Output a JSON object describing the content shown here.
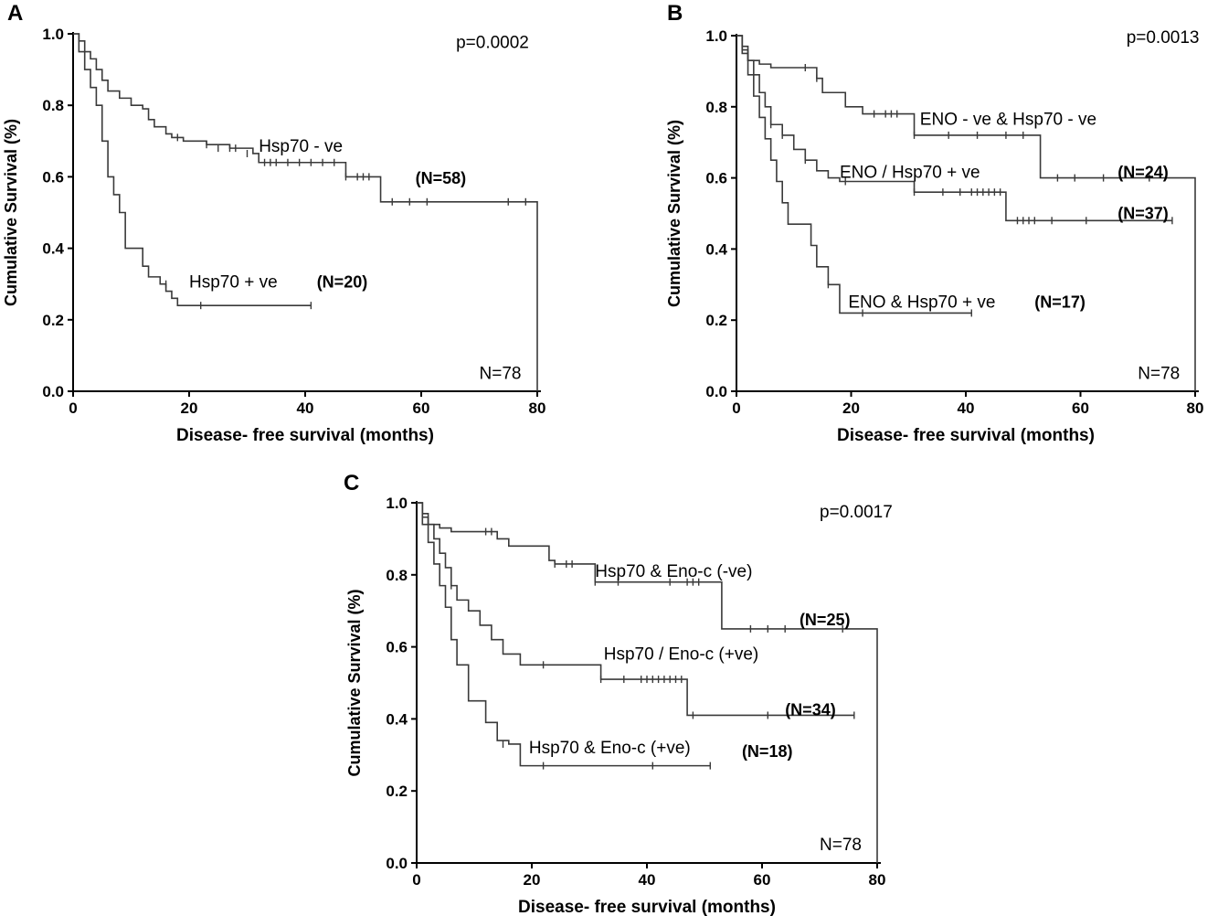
{
  "chart_data": [
    {
      "panel": "A",
      "type": "line",
      "xlabel": "Disease- free survival (months)",
      "ylabel": "Cumulative Survival (%)",
      "xlim": [
        0,
        80
      ],
      "ylim": [
        0,
        1
      ],
      "xticks": [
        "0",
        "20",
        "40",
        "60",
        "80"
      ],
      "yticks": [
        "0.0",
        "0.2",
        "0.4",
        "0.6",
        "0.8",
        "1.0"
      ],
      "annotations": [
        {
          "text": "p=0.0002",
          "x": 66,
          "y": 0.96,
          "style": "annot"
        },
        {
          "text": "Hsp70 - ve",
          "x": 32,
          "y": 0.67,
          "style": "annot"
        },
        {
          "text": "(N=58)",
          "x": 59,
          "y": 0.58,
          "style": "annot-bold"
        },
        {
          "text": "Hsp70 + ve",
          "x": 20,
          "y": 0.29,
          "style": "annot"
        },
        {
          "text": "(N=20)",
          "x": 42,
          "y": 0.29,
          "style": "annot-bold"
        },
        {
          "text": "N=78",
          "x": 70,
          "y": 0.035,
          "style": "annot"
        }
      ],
      "series": [
        {
          "x": [
            0,
            1,
            2,
            3,
            4,
            5,
            6,
            8,
            10,
            12,
            13,
            14,
            16,
            17,
            18,
            19,
            23,
            27,
            31,
            32,
            47,
            53,
            80,
            80
          ],
          "y": [
            1.0,
            0.98,
            0.95,
            0.93,
            0.9,
            0.87,
            0.84,
            0.82,
            0.8,
            0.79,
            0.76,
            0.74,
            0.72,
            0.71,
            0.71,
            0.7,
            0.69,
            0.68,
            0.665,
            0.64,
            0.6,
            0.53,
            0.53,
            0.0
          ],
          "censored_x": [
            18,
            23,
            25,
            27,
            28,
            30,
            33,
            34,
            35,
            37,
            39,
            41,
            43,
            45,
            47,
            49,
            50,
            51,
            55,
            58,
            61,
            75,
            78
          ],
          "censored_y": [
            0.71,
            0.69,
            0.68,
            0.68,
            0.68,
            0.665,
            0.64,
            0.64,
            0.64,
            0.64,
            0.64,
            0.64,
            0.64,
            0.64,
            0.6,
            0.6,
            0.6,
            0.6,
            0.53,
            0.53,
            0.53,
            0.53,
            0.53
          ]
        },
        {
          "x": [
            0,
            1,
            2,
            3,
            4,
            5,
            6,
            7,
            8,
            9,
            12,
            13,
            15,
            16,
            17,
            18,
            41
          ],
          "y": [
            1.0,
            0.95,
            0.9,
            0.85,
            0.8,
            0.7,
            0.6,
            0.55,
            0.5,
            0.4,
            0.35,
            0.32,
            0.3,
            0.28,
            0.26,
            0.24,
            0.24
          ],
          "censored_x": [
            16,
            22,
            41
          ],
          "censored_y": [
            0.3,
            0.24,
            0.24
          ]
        }
      ]
    },
    {
      "panel": "B",
      "type": "line",
      "xlabel": "Disease- free survival (months)",
      "ylabel": "Cumulative Survival (%)",
      "xlim": [
        0,
        80
      ],
      "ylim": [
        0,
        1
      ],
      "xticks": [
        "0",
        "20",
        "40",
        "60",
        "80"
      ],
      "yticks": [
        "0.0",
        "0.2",
        "0.4",
        "0.6",
        "0.8",
        "1.0"
      ],
      "annotations": [
        {
          "text": "p=0.0013",
          "x": 68,
          "y": 0.98,
          "style": "annot"
        },
        {
          "text": "ENO - ve & Hsp70  - ve",
          "x": 32,
          "y": 0.75,
          "style": "annot"
        },
        {
          "text": "(N=24)",
          "x": 66.5,
          "y": 0.6,
          "style": "annot-bold"
        },
        {
          "text": "ENO / Hsp70 + ve",
          "x": 18,
          "y": 0.6,
          "style": "annot"
        },
        {
          "text": "(N=37)",
          "x": 66.5,
          "y": 0.485,
          "style": "annot-bold"
        },
        {
          "text": "ENO & Hsp70 + ve",
          "x": 19.5,
          "y": 0.235,
          "style": "annot"
        },
        {
          "text": "(N=17)",
          "x": 52,
          "y": 0.235,
          "style": "annot-bold"
        },
        {
          "text": "N=78",
          "x": 70,
          "y": 0.035,
          "style": "annot"
        }
      ],
      "series": [
        {
          "x": [
            0,
            1,
            2,
            4,
            6,
            12,
            14,
            15,
            19,
            22,
            31,
            53,
            80,
            80
          ],
          "y": [
            1.0,
            0.96,
            0.93,
            0.92,
            0.91,
            0.91,
            0.88,
            0.84,
            0.8,
            0.78,
            0.72,
            0.6,
            0.6,
            0.0
          ],
          "censored_x": [
            12,
            14,
            24,
            26,
            27,
            28,
            31,
            37,
            42,
            47,
            50,
            56,
            59,
            64,
            72
          ],
          "censored_y": [
            0.91,
            0.88,
            0.78,
            0.78,
            0.78,
            0.78,
            0.72,
            0.72,
            0.72,
            0.72,
            0.72,
            0.6,
            0.6,
            0.6,
            0.6
          ]
        },
        {
          "x": [
            0,
            1,
            2,
            3,
            4,
            5,
            6,
            8,
            10,
            12,
            14,
            16,
            18,
            31,
            34,
            47,
            76
          ],
          "y": [
            1.0,
            0.97,
            0.93,
            0.89,
            0.84,
            0.8,
            0.75,
            0.72,
            0.68,
            0.65,
            0.62,
            0.6,
            0.59,
            0.56,
            0.56,
            0.48,
            0.48
          ],
          "censored_x": [
            6,
            8,
            12,
            19,
            31,
            36,
            39,
            41,
            42,
            43,
            44,
            45,
            46,
            49,
            50,
            51,
            52,
            55,
            61,
            76
          ],
          "censored_y": [
            0.75,
            0.72,
            0.65,
            0.59,
            0.56,
            0.56,
            0.56,
            0.56,
            0.56,
            0.56,
            0.56,
            0.56,
            0.56,
            0.48,
            0.48,
            0.48,
            0.48,
            0.48,
            0.48,
            0.48
          ]
        },
        {
          "x": [
            0,
            1,
            2,
            3,
            4,
            5,
            6,
            7,
            8,
            9,
            13,
            14,
            16,
            18,
            41
          ],
          "y": [
            1.0,
            0.95,
            0.89,
            0.83,
            0.77,
            0.71,
            0.65,
            0.59,
            0.53,
            0.47,
            0.41,
            0.35,
            0.3,
            0.22,
            0.22
          ],
          "censored_x": [
            16,
            22,
            41
          ],
          "censored_y": [
            0.3,
            0.22,
            0.22
          ]
        }
      ]
    },
    {
      "panel": "C",
      "type": "line",
      "xlabel": "Disease- free survival (months)",
      "ylabel": "Cumulative Survival (%)",
      "xlim": [
        0,
        80
      ],
      "ylim": [
        0,
        1
      ],
      "xticks": [
        "0",
        "20",
        "40",
        "60",
        "80"
      ],
      "yticks": [
        "0.0",
        "0.2",
        "0.4",
        "0.6",
        "0.8",
        "1.0"
      ],
      "annotations": [
        {
          "text": "p=0.0017",
          "x": 70,
          "y": 0.96,
          "style": "annot"
        },
        {
          "text": "Hsp70 & Eno-c (-ve)",
          "x": 31,
          "y": 0.795,
          "style": "annot"
        },
        {
          "text": "(N=25)",
          "x": 66.5,
          "y": 0.66,
          "style": "annot-bold"
        },
        {
          "text": "Hsp70 / Eno-c (+ve)",
          "x": 32.5,
          "y": 0.565,
          "style": "annot"
        },
        {
          "text": "(N=34)",
          "x": 64,
          "y": 0.41,
          "style": "annot-bold"
        },
        {
          "text": "Hsp70 & Eno-c (+ve)",
          "x": 19.5,
          "y": 0.305,
          "style": "annot"
        },
        {
          "text": "(N=18)",
          "x": 56.5,
          "y": 0.295,
          "style": "annot-bold"
        },
        {
          "text": "N=78",
          "x": 70,
          "y": 0.035,
          "style": "annot"
        }
      ],
      "series": [
        {
          "x": [
            0,
            1,
            2,
            4,
            6,
            12,
            14,
            16,
            23,
            24,
            31,
            53,
            80,
            80
          ],
          "y": [
            1.0,
            0.96,
            0.94,
            0.93,
            0.92,
            0.92,
            0.9,
            0.88,
            0.84,
            0.83,
            0.78,
            0.65,
            0.65,
            0.0
          ],
          "censored_x": [
            12,
            13,
            24,
            26,
            27,
            31,
            35,
            44,
            47,
            48,
            49,
            58,
            61,
            64,
            74
          ],
          "censored_y": [
            0.92,
            0.92,
            0.83,
            0.83,
            0.83,
            0.78,
            0.78,
            0.78,
            0.78,
            0.78,
            0.78,
            0.65,
            0.65,
            0.65,
            0.65
          ]
        },
        {
          "x": [
            0,
            1,
            2,
            3,
            4,
            5,
            6,
            7,
            9,
            11,
            13,
            15,
            18,
            22,
            32,
            35,
            47,
            76
          ],
          "y": [
            1.0,
            0.97,
            0.94,
            0.9,
            0.86,
            0.82,
            0.77,
            0.73,
            0.7,
            0.66,
            0.62,
            0.58,
            0.55,
            0.55,
            0.51,
            0.51,
            0.41,
            0.41
          ],
          "censored_x": [
            6,
            22,
            32,
            36,
            39,
            40,
            41,
            42,
            43,
            44,
            45,
            46,
            48,
            61,
            76
          ],
          "censored_y": [
            0.77,
            0.55,
            0.51,
            0.51,
            0.51,
            0.51,
            0.51,
            0.51,
            0.51,
            0.51,
            0.51,
            0.51,
            0.41,
            0.41,
            0.41
          ]
        },
        {
          "x": [
            0,
            1,
            2,
            3,
            4,
            5,
            6,
            7,
            9,
            12,
            14,
            16,
            18,
            51
          ],
          "y": [
            1.0,
            0.94,
            0.89,
            0.83,
            0.77,
            0.71,
            0.62,
            0.55,
            0.45,
            0.39,
            0.34,
            0.33,
            0.27,
            0.27
          ],
          "censored_x": [
            15,
            22,
            41,
            51
          ],
          "censored_y": [
            0.33,
            0.27,
            0.27,
            0.27
          ]
        }
      ]
    }
  ]
}
